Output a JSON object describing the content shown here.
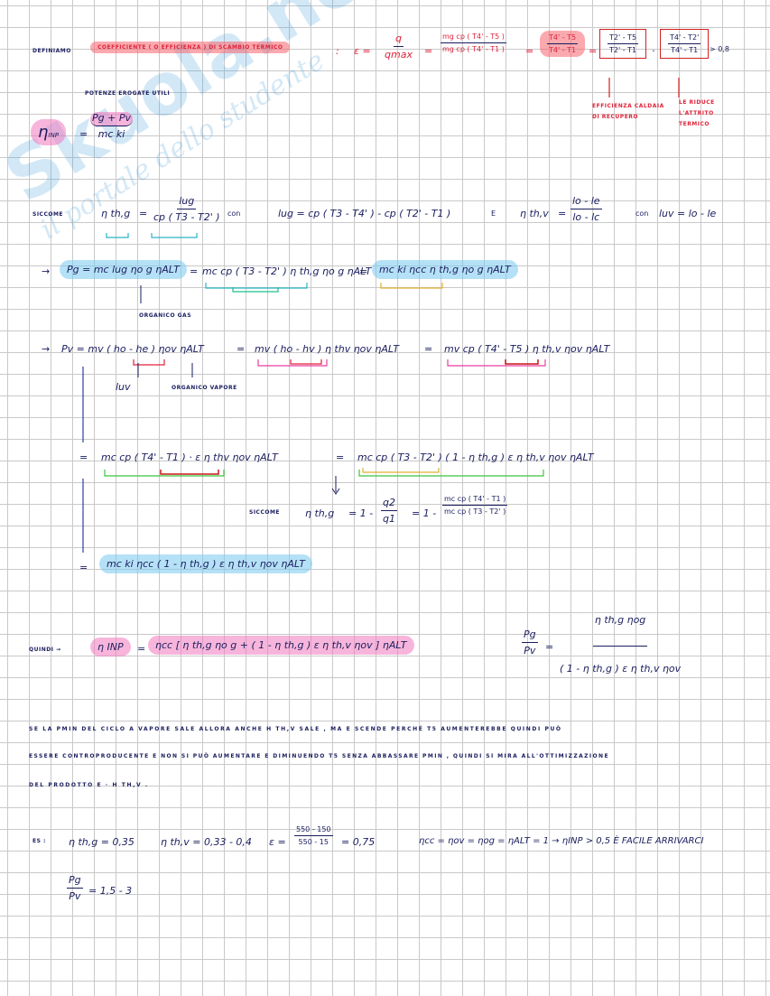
{
  "watermark": {
    "brand": "Skuola.net",
    "tagline": "il portale dello studente"
  },
  "section1": {
    "lead": "DEFINIAMO",
    "highlight": "COEFFICIENTE ( O EFFICIENZA ) DI SCAMBIO TERMICO",
    "colon": ":",
    "eps": "ε =",
    "f1_num": "q",
    "f1_den": "qmax",
    "eq1": "=",
    "f2_num": "mg cp ( T4' - T5 )",
    "f2_den": "mg cp ( T4' - T1 )",
    "eq2": "=",
    "f3_num": "T4' - T5",
    "f3_den": "T4' - T1",
    "eq3": "=",
    "f4_num": "T2' - T5",
    "f4_den": "T2' - T1",
    "dot": "·",
    "f5_num": "T4' - T2'",
    "f5_den": "T4' - T1",
    "gt": "> 0,8",
    "note_left": "EFFICIENZA CALDAIA DI RECUPERO",
    "note_right": "LE RIDUCE L'ATTRITO TERMICO"
  },
  "section2": {
    "label": "POTENZE EROGATE UTILI",
    "eta": "η",
    "sub": "INP",
    "eq": "=",
    "num": "Pg + Pv",
    "den": "mc ki"
  },
  "section3": {
    "lead": "SICCOME",
    "eta_label": "η th,g",
    "eq1": "=",
    "num1": "lug",
    "den1": "cp ( T3 - T2' )",
    "con": "con",
    "lu_eq": "lug = cp ( T3 - T4' ) - cp ( T2' - T1 )",
    "e": "E",
    "eta_v": "η th,v",
    "eq2": "=",
    "num2": "lo - le",
    "den2": "lo - lc",
    "con2": "con",
    "luv": "luv = lo - le"
  },
  "section4": {
    "arrow": "→",
    "expr1": "Pg = mc lug ηo g ηALT",
    "eq1": "=",
    "expr2": "mc cp ( T3 - T2' ) η th,g ηo g ηALT",
    "eq2": "=",
    "expr3": "mc ki ηcc η th,g ηo g ηALT",
    "note": "ORGANICO GAS"
  },
  "section5": {
    "arrow": "→",
    "expr1": "Pv = mv ( ho - he ) ηov ηALT",
    "eq1": "=",
    "expr2": "mv ( ho - hv ) η thv ηov ηALT",
    "eq2": "=",
    "expr3": "mv cp ( T4' - T5 ) η th,v ηov ηALT",
    "note1": "luv",
    "note2": "ORGANICO VAPORE"
  },
  "section6": {
    "eq1": "=",
    "expr1": "mc cp ( T4' - T1 ) · ε η thv ηov ηALT",
    "eq2": "=",
    "expr2": "mc cp ( T3 - T2' ) ( 1 - η th,g ) ε η th,v ηov ηALT",
    "siccome": "SICCOME",
    "eta": "η th,g",
    "eq3": "= 1 -",
    "f1_num": "q2",
    "f1_den": "q1",
    "eq4": "= 1 -",
    "f2_num": "mc cp ( T4' - T1 )",
    "f2_den": "mc cp ( T3 - T2' )"
  },
  "section7": {
    "eq": "=",
    "expr": "mc ki ηcc ( 1 - η th,g ) ε η th,v ηov ηALT"
  },
  "section8": {
    "lead": "QUINDI →",
    "eta": "η INP",
    "eq": "=",
    "expr": "ηcc [ η th,g ηo g + ( 1 - η th,g ) ε η th,v ηov ] ηALT",
    "ratio_num": "Pg",
    "ratio_den": "Pv",
    "eq2": "=",
    "rhs_num": "η th,g ηog",
    "rhs_den": "( 1 - η th,g ) ε η th,v ηov"
  },
  "section9": {
    "line1": "SE LA PMIN DEL CICLO A VAPORE SALE ALLORA ANCHE η th,v SALE , MA ε SCENDE PERCHÉ T5 AUMENTEREBBE QUINDI PUÒ",
    "line2": "ESSERE CONTROPRODUCENTE E NON SI PUÒ AUMENTARE ε DIMINUENDO T5 SENZA ABBASSARE PMIN , QUINDI SI MIRA ALL'OTTIMIZZAZIONE",
    "line3": "DEL PRODOTTO ε · η th,v ."
  },
  "section10": {
    "lead": "ES :",
    "v1": "η th,g = 0,35",
    "v2": "η th,v = 0,33 - 0,4",
    "eps": "ε =",
    "f_num": "550 - 150",
    "f_den": "550 - 15",
    "f_res": "= 0,75",
    "v3": "ηcc = ηov = ηog = ηALT = 1  →  ηINP > 0,5  È FACILE ARRIVARCI",
    "ratio_num": "Pg",
    "ratio_den": "Pv",
    "ratio_val": "= 1,5 - 3"
  }
}
